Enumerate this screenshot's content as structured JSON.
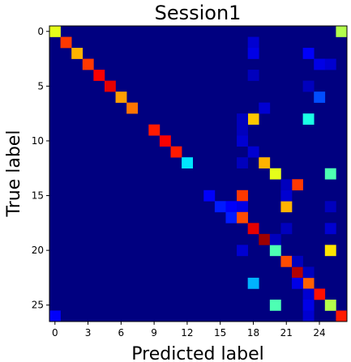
{
  "chart_data": {
    "type": "heatmap",
    "title": "Session1",
    "xlabel": "Predicted label",
    "ylabel": "True label",
    "n": 27,
    "x_ticks": [
      0,
      3,
      6,
      9,
      12,
      15,
      18,
      21,
      24
    ],
    "y_ticks": [
      0,
      5,
      10,
      15,
      20,
      25
    ],
    "colormap": "jet",
    "value_range": [
      0,
      1
    ],
    "cells": [
      [
        0,
        0,
        0.6
      ],
      [
        0,
        26,
        0.55
      ],
      [
        1,
        1,
        0.82
      ],
      [
        2,
        2,
        0.7
      ],
      [
        3,
        3,
        0.82
      ],
      [
        4,
        4,
        0.88
      ],
      [
        5,
        5,
        0.9
      ],
      [
        6,
        6,
        0.72
      ],
      [
        7,
        7,
        0.76
      ],
      [
        8,
        18,
        0.68
      ],
      [
        8,
        23,
        0.4
      ],
      [
        9,
        9,
        0.85
      ],
      [
        10,
        10,
        0.88
      ],
      [
        11,
        11,
        0.85
      ],
      [
        12,
        12,
        0.35
      ],
      [
        12,
        19,
        0.7
      ],
      [
        13,
        20,
        0.6
      ],
      [
        13,
        25,
        0.45
      ],
      [
        14,
        22,
        0.82
      ],
      [
        15,
        14,
        0.12
      ],
      [
        15,
        17,
        0.82
      ],
      [
        16,
        15,
        0.15
      ],
      [
        16,
        16,
        0.12
      ],
      [
        16,
        17,
        0.1
      ],
      [
        16,
        21,
        0.7
      ],
      [
        17,
        16,
        0.15
      ],
      [
        17,
        17,
        0.8
      ],
      [
        18,
        18,
        0.9
      ],
      [
        19,
        19,
        0.97
      ],
      [
        20,
        20,
        0.45
      ],
      [
        20,
        25,
        0.65
      ],
      [
        21,
        21,
        0.8
      ],
      [
        22,
        22,
        0.95
      ],
      [
        23,
        18,
        0.3
      ],
      [
        23,
        23,
        0.78
      ],
      [
        24,
        24,
        0.86
      ],
      [
        25,
        20,
        0.45
      ],
      [
        25,
        25,
        0.55
      ],
      [
        26,
        0,
        0.12
      ],
      [
        26,
        26,
        0.85
      ],
      [
        1,
        18,
        0.08
      ],
      [
        2,
        18,
        0.1
      ],
      [
        3,
        24,
        0.1
      ],
      [
        7,
        19,
        0.08
      ],
      [
        8,
        17,
        0.06
      ],
      [
        10,
        17,
        0.08
      ],
      [
        11,
        18,
        0.08
      ],
      [
        15,
        21,
        0.08
      ],
      [
        16,
        25,
        0.06
      ],
      [
        18,
        25,
        0.08
      ],
      [
        19,
        20,
        0.06
      ],
      [
        20,
        17,
        0.08
      ],
      [
        21,
        22,
        0.06
      ],
      [
        22,
        23,
        0.06
      ],
      [
        23,
        22,
        0.1
      ],
      [
        24,
        23,
        0.08
      ],
      [
        25,
        23,
        0.1
      ],
      [
        26,
        23,
        0.08
      ],
      [
        6,
        24,
        0.2
      ],
      [
        2,
        23,
        0.12
      ],
      [
        3,
        25,
        0.08
      ],
      [
        5,
        23,
        0.06
      ],
      [
        9,
        17,
        0.06
      ],
      [
        4,
        18,
        0.06
      ],
      [
        12,
        17,
        0.06
      ],
      [
        14,
        21,
        0.06
      ],
      [
        18,
        21,
        0.06
      ]
    ]
  }
}
